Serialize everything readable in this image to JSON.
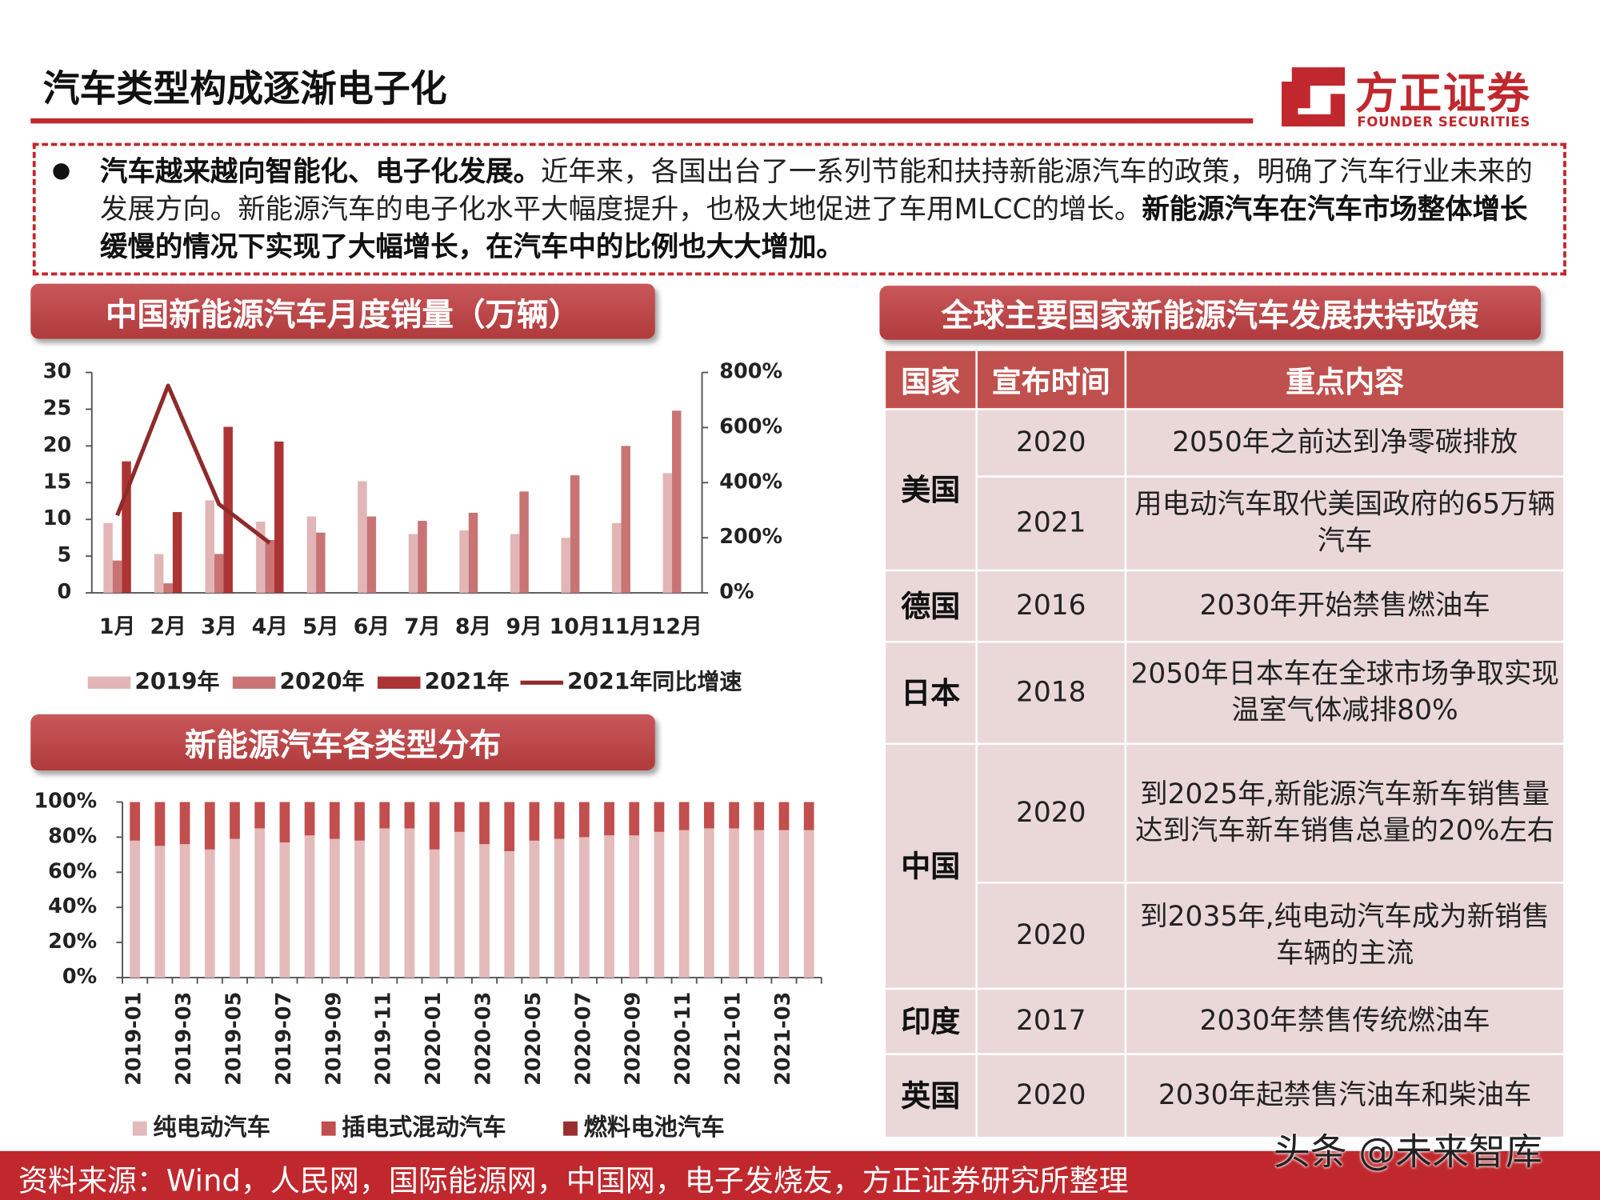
{
  "header": {
    "title": "汽车类型构成逐渐电子化",
    "logo_name": "方正证券",
    "logo_en": "FOUNDER SECURITIES"
  },
  "bullet": {
    "lead": "汽车越来越向智能化、电子化发展。",
    "body": "近年来，各国出台了一系列节能和扶持新能源汽车的政策，明确了汽车行业未来的发展方向。新能源汽车的电子化水平大幅度提升，也极大地促进了车用MLCC的增长。",
    "emphasis": "新能源汽车在汽车市场整体增长缓慢的情况下实现了大幅增长，在汽车中的比例也大大增加。"
  },
  "section_titles": [
    "中国新能源汽车月度销量（万辆）",
    "新能源汽车各类型分布",
    "全球主要国家新能源汽车发展扶持政策"
  ],
  "chart_data": [
    {
      "type": "bar",
      "categories": [
        "1月",
        "2月",
        "3月",
        "4月",
        "5月",
        "6月",
        "7月",
        "8月",
        "9月",
        "10月",
        "11月",
        "12月"
      ],
      "series": [
        {
          "name": "2019年",
          "color": "#e2b6b6",
          "values": [
            9.5,
            5.3,
            12.6,
            9.7,
            10.4,
            15.2,
            8.0,
            8.5,
            8.0,
            7.5,
            9.5,
            16.3
          ]
        },
        {
          "name": "2020年",
          "color": "#c87474",
          "values": [
            4.4,
            1.3,
            5.3,
            7.2,
            8.2,
            10.4,
            9.8,
            10.9,
            13.8,
            16.0,
            20.0,
            24.8
          ]
        },
        {
          "name": "2021年",
          "color": "#ad3434",
          "values": [
            17.9,
            11.0,
            22.6,
            20.6,
            null,
            null,
            null,
            null,
            null,
            null,
            null,
            null
          ]
        },
        {
          "name": "2021年同比增速",
          "type": "line",
          "axis": "y2",
          "color": "#8e2b2b",
          "values": [
            281,
            752,
            322,
            181,
            null,
            null,
            null,
            null,
            null,
            null,
            null,
            null
          ]
        }
      ],
      "ylim": [
        0,
        30
      ],
      "yticks": [
        0,
        5,
        10,
        15,
        20,
        25,
        30
      ],
      "y2lim": [
        0,
        800
      ],
      "y2ticks": [
        {
          "value": 0,
          "label": "0%"
        },
        {
          "value": 200,
          "label": "200%"
        },
        {
          "value": 400,
          "label": "400%"
        },
        {
          "value": 600,
          "label": "600%"
        },
        {
          "value": 800,
          "label": "800%"
        }
      ],
      "legend": "bottom"
    },
    {
      "type": "stacked_bar",
      "categories": [
        "2019-01",
        null,
        "2019-03",
        null,
        "2019-05",
        null,
        "2019-07",
        null,
        "2019-09",
        null,
        "2019-11",
        null,
        "2020-01",
        null,
        "2020-03",
        null,
        "2020-05",
        null,
        "2020-07",
        null,
        "2020-09",
        null,
        "2020-11",
        null,
        "2021-01",
        null,
        "2021-03",
        null
      ],
      "series": [
        {
          "name": "纯电动汽车",
          "color": "#e4baba",
          "values": [
            78,
            75,
            76,
            73,
            79,
            85,
            77,
            81,
            79,
            78,
            85,
            85,
            73,
            83,
            76,
            72,
            78,
            79,
            80,
            81,
            81,
            83,
            84,
            85,
            85,
            84,
            84,
            84
          ]
        },
        {
          "name": "插电式混动汽车",
          "color": "#c24e4e",
          "values": [
            22,
            25,
            24,
            27,
            21,
            15,
            23,
            19,
            21,
            22,
            15,
            15,
            27,
            17,
            24,
            28,
            22,
            21,
            20,
            19,
            19,
            17,
            16,
            15,
            15,
            16,
            16,
            16
          ]
        },
        {
          "name": "燃料电池汽车",
          "color": "#9a2f2f",
          "values": [
            0,
            0,
            0,
            0,
            0,
            0,
            0,
            0,
            0,
            0,
            0,
            0,
            0,
            0,
            0,
            0,
            0,
            0,
            0,
            0,
            0,
            0,
            0,
            0,
            0,
            0,
            0,
            0
          ]
        }
      ],
      "ylim": [
        0,
        100
      ],
      "yticks": [
        {
          "value": 0,
          "label": "0%"
        },
        {
          "value": 20,
          "label": "20%"
        },
        {
          "value": 40,
          "label": "40%"
        },
        {
          "value": 60,
          "label": "60%"
        },
        {
          "value": 80,
          "label": "80%"
        },
        {
          "value": 100,
          "label": "100%"
        }
      ],
      "legend": "bottom"
    }
  ],
  "table": {
    "header": [
      "国家",
      "宣布时间",
      "重点内容"
    ],
    "rows": [
      {
        "country": "美国",
        "items": [
          {
            "year": "2020",
            "content": "2050年之前达到净零碳排放"
          },
          {
            "year": "2021",
            "content": "用电动汽车取代美国政府的65万辆汽车"
          }
        ]
      },
      {
        "country": "德国",
        "items": [
          {
            "year": "2016",
            "content": "2030年开始禁售燃油车"
          }
        ]
      },
      {
        "country": "日本",
        "items": [
          {
            "year": "2018",
            "content": "2050年日本车在全球市场争取实现温室气体减排80%"
          }
        ]
      },
      {
        "country": "中国",
        "items": [
          {
            "year": "2020",
            "content": "到2025年,新能源汽车新车销售量达到汽车新车销售总量的20%左右"
          },
          {
            "year": "2020",
            "content": "到2035年,纯电动汽车成为新销售车辆的主流"
          }
        ]
      },
      {
        "country": "印度",
        "items": [
          {
            "year": "2017",
            "content": "2030年禁售传统燃油车"
          }
        ]
      },
      {
        "country": "英国",
        "items": [
          {
            "year": "2020",
            "content": "2030年起禁售汽油车和柴油车"
          }
        ]
      }
    ]
  },
  "source": "资料来源：Wind，人民网，国际能源网，中国网，电子发烧友，方正证券研究所整理",
  "watermark": "头条 @未来智库"
}
